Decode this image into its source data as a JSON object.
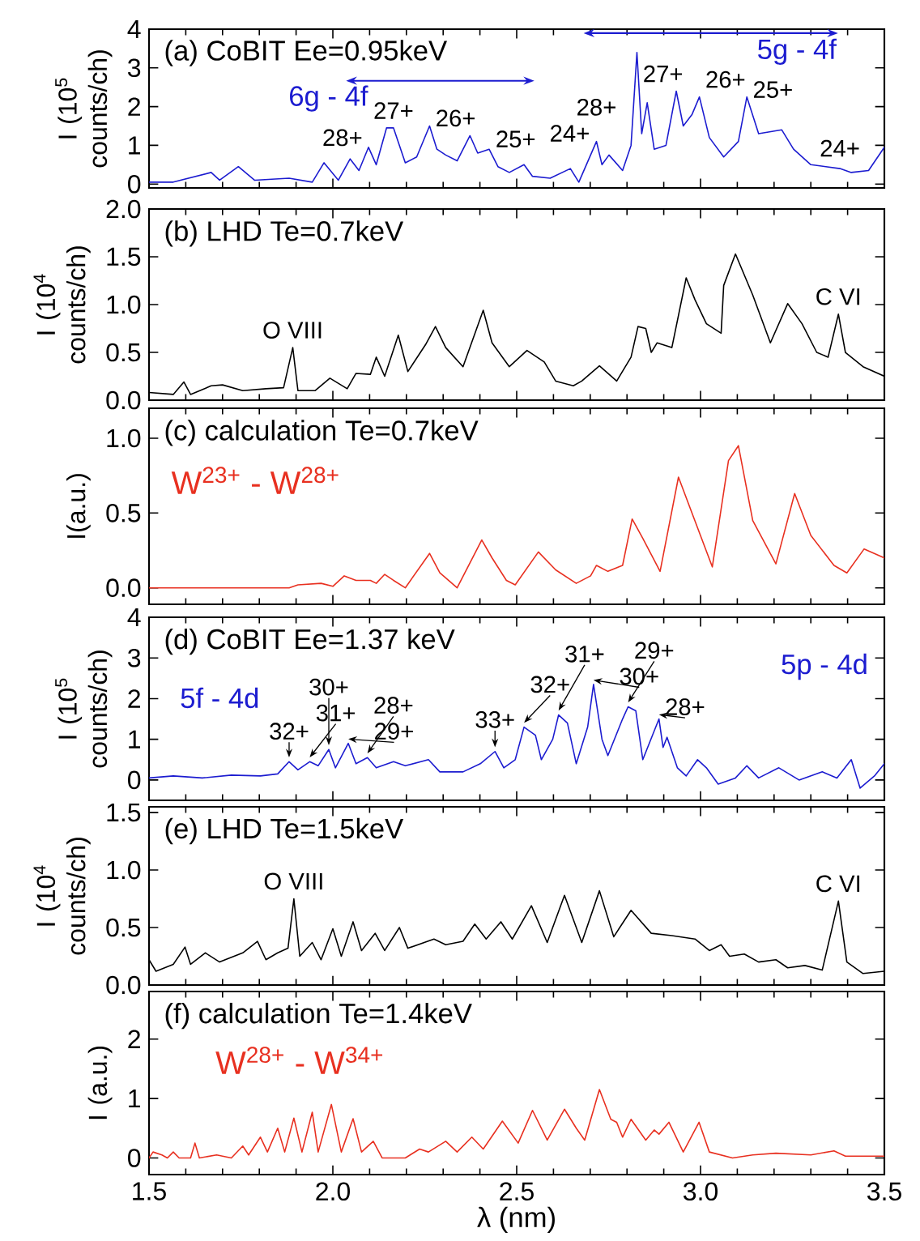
{
  "chart_data": [
    {
      "type": "line",
      "title": "(a) CoBIT Ee=0.95keV",
      "ylabel": "I (10$^{5}$ counts/ch)",
      "x": [
        1.5,
        1.566,
        1.669,
        1.692,
        1.743,
        1.787,
        1.881,
        1.944,
        1.976,
        2.015,
        2.047,
        2.071,
        2.097,
        2.118,
        2.146,
        2.165,
        2.197,
        2.228,
        2.263,
        2.283,
        2.307,
        2.338,
        2.373,
        2.394,
        2.425,
        2.449,
        2.48,
        2.52,
        2.543,
        2.591,
        2.646,
        2.669,
        2.717,
        2.732,
        2.751,
        2.788,
        2.811,
        2.827,
        2.84,
        2.855,
        2.874,
        2.906,
        2.934,
        2.953,
        2.977,
        2.997,
        3.024,
        3.063,
        3.103,
        3.126,
        3.158,
        3.221,
        3.253,
        3.3,
        3.379,
        3.41,
        3.457,
        3.5
      ],
      "series": [
        {
          "color": "#1c1cd0",
          "values": [
            0.05,
            0.05,
            0.3,
            0.1,
            0.45,
            0.1,
            0.15,
            0.05,
            0.55,
            0.1,
            0.65,
            0.35,
            0.95,
            0.5,
            1.45,
            1.45,
            0.55,
            0.7,
            1.5,
            0.9,
            0.75,
            0.6,
            1.25,
            0.8,
            0.9,
            0.45,
            0.3,
            0.5,
            0.2,
            0.15,
            0.4,
            0.05,
            1.1,
            0.5,
            0.75,
            0.35,
            1.0,
            3.4,
            1.3,
            2.1,
            0.9,
            1.0,
            2.4,
            1.5,
            1.8,
            2.25,
            1.2,
            0.7,
            1.1,
            2.25,
            1.3,
            1.4,
            0.9,
            0.5,
            0.4,
            0.3,
            0.35,
            0.95
          ]
        }
      ],
      "xlim": [
        1.5,
        3.5
      ],
      "ylim": [
        -0.1,
        4
      ],
      "xticks": [
        1.5,
        2,
        2.5,
        3,
        3.5
      ],
      "yticks": [
        0,
        1,
        2,
        3,
        4
      ],
      "tick_labels": "y",
      "annotations": [
        "6g - 4f",
        "5g - 4f",
        {
          "text": "28+",
          "x": 2.097,
          "y": 0.95
        },
        {
          "text": "27+",
          "x": 2.165,
          "y": 1.45
        },
        {
          "text": "26+",
          "x": 2.263,
          "y": 1.5
        },
        {
          "text": "25+",
          "x": 2.373,
          "y": 1.25
        },
        {
          "text": "24+",
          "x": 2.52,
          "y": 0.5
        },
        {
          "text": "28+",
          "x": 2.717,
          "y": 1.1
        },
        {
          "text": "27+",
          "x": 2.827,
          "y": 3.4
        },
        {
          "text": "26+",
          "x": 2.997,
          "y": 2.25
        },
        {
          "text": "25+",
          "x": 3.126,
          "y": 2.25
        },
        {
          "text": "24+",
          "x": 3.379,
          "y": 0.4
        }
      ]
    },
    {
      "type": "line",
      "title": "(b) LHD Te=0.7keV",
      "ylabel": "I (10$^{4}$ counts/ch)",
      "x": [
        1.5,
        1.566,
        1.595,
        1.613,
        1.669,
        1.7,
        1.755,
        1.818,
        1.866,
        1.891,
        1.905,
        1.952,
        1.992,
        2.039,
        2.063,
        2.102,
        2.118,
        2.141,
        2.178,
        2.204,
        2.252,
        2.279,
        2.307,
        2.354,
        2.409,
        2.433,
        2.48,
        2.528,
        2.575,
        2.606,
        2.654,
        2.677,
        2.725,
        2.772,
        2.811,
        2.83,
        2.851,
        2.866,
        2.882,
        2.922,
        2.961,
        2.985,
        3.016,
        3.056,
        3.063,
        3.095,
        3.142,
        3.19,
        3.237,
        3.276,
        3.316,
        3.347,
        3.375,
        3.394,
        3.442,
        3.5
      ],
      "series": [
        {
          "color": "#000000",
          "values": [
            0.08,
            0.06,
            0.19,
            0.06,
            0.15,
            0.16,
            0.1,
            0.12,
            0.13,
            0.55,
            0.1,
            0.1,
            0.23,
            0.12,
            0.28,
            0.27,
            0.45,
            0.25,
            0.68,
            0.3,
            0.58,
            0.77,
            0.55,
            0.35,
            0.94,
            0.6,
            0.35,
            0.52,
            0.4,
            0.2,
            0.15,
            0.2,
            0.36,
            0.2,
            0.45,
            0.77,
            0.75,
            0.5,
            0.6,
            0.55,
            1.28,
            1.05,
            0.8,
            0.7,
            1.2,
            1.53,
            1.1,
            0.6,
            1.01,
            0.8,
            0.5,
            0.45,
            0.9,
            0.5,
            0.35,
            0.25
          ]
        }
      ],
      "xlim": [
        1.5,
        3.5
      ],
      "ylim": [
        0,
        2
      ],
      "xticks": [
        1.5,
        2,
        2.5,
        3,
        3.5
      ],
      "yticks": [
        {
          "value": 0,
          "label": "0.0"
        },
        0.5,
        {
          "value": 1,
          "label": "1.0"
        },
        1.5,
        {
          "value": 2,
          "label": "2.0"
        }
      ],
      "tick_labels": "y",
      "annotations": [
        {
          "text": "O VIII",
          "x": 1.891,
          "y": 0.55
        },
        {
          "text": "C VI",
          "x": 3.375,
          "y": 0.9
        }
      ]
    },
    {
      "type": "line",
      "title": "(c) calculation Te=0.7keV",
      "ylabel": "I(a.u.)",
      "x": [
        1.5,
        1.881,
        1.905,
        1.968,
        2.0,
        2.031,
        2.063,
        2.102,
        2.118,
        2.141,
        2.165,
        2.197,
        2.263,
        2.291,
        2.338,
        2.405,
        2.433,
        2.472,
        2.496,
        2.559,
        2.606,
        2.662,
        2.701,
        2.717,
        2.748,
        2.788,
        2.814,
        2.843,
        2.89,
        2.94,
        2.969,
        3.032,
        3.076,
        3.103,
        3.142,
        3.205,
        3.256,
        3.3,
        3.363,
        3.398,
        3.445,
        3.5
      ],
      "series": [
        {
          "name": "W$^{23+}$ - W$^{28+}$",
          "color": "#e83020",
          "values": [
            0,
            0,
            0.02,
            0.03,
            0.01,
            0.08,
            0.05,
            0.05,
            0.03,
            0.09,
            0.05,
            0,
            0.23,
            0.1,
            0,
            0.32,
            0.2,
            0.05,
            0.02,
            0.24,
            0.12,
            0.03,
            0.08,
            0.15,
            0.11,
            0.15,
            0.46,
            0.33,
            0.11,
            0.74,
            0.55,
            0.14,
            0.85,
            0.95,
            0.45,
            0.16,
            0.63,
            0.35,
            0.15,
            0.1,
            0.26,
            0.2
          ]
        }
      ],
      "xlim": [
        1.5,
        3.5
      ],
      "ylim": [
        -0.11,
        1.2
      ],
      "xticks": [
        1.5,
        2,
        2.5,
        3,
        3.5
      ],
      "yticks": [
        {
          "value": 0,
          "label": "0.0"
        },
        0.5,
        {
          "value": 1,
          "label": "1.0"
        }
      ],
      "tick_labels": "y"
    },
    {
      "type": "line",
      "title": "(d) CoBIT Ee=1.37 keV",
      "ylabel": "I (10$^{5}$ counts/ch)",
      "x": [
        1.5,
        1.566,
        1.645,
        1.724,
        1.803,
        1.85,
        1.881,
        1.905,
        1.937,
        1.96,
        1.989,
        2.007,
        2.042,
        2.063,
        2.094,
        2.118,
        2.165,
        2.197,
        2.26,
        2.291,
        2.354,
        2.401,
        2.441,
        2.465,
        2.496,
        2.52,
        2.551,
        2.567,
        2.598,
        2.614,
        2.638,
        2.662,
        2.693,
        2.709,
        2.732,
        2.748,
        2.788,
        2.803,
        2.824,
        2.843,
        2.887,
        2.898,
        2.909,
        2.937,
        2.961,
        2.992,
        3.016,
        3.048,
        3.095,
        3.126,
        3.158,
        3.213,
        3.268,
        3.331,
        3.371,
        3.41,
        3.434,
        3.473,
        3.5
      ],
      "series": [
        {
          "color": "#1c1cd0",
          "values": [
            0.05,
            0.1,
            0.05,
            0.12,
            0.1,
            0.15,
            0.45,
            0.25,
            0.45,
            0.35,
            0.75,
            0.3,
            0.9,
            0.4,
            0.55,
            0.3,
            0.45,
            0.35,
            0.5,
            0.2,
            0.2,
            0.4,
            0.7,
            0.3,
            0.5,
            1.3,
            1.1,
            0.5,
            1.0,
            1.6,
            1.4,
            0.4,
            1.3,
            2.35,
            1.0,
            0.6,
            1.5,
            1.8,
            1.7,
            0.5,
            1.5,
            0.8,
            1.05,
            0.3,
            0.1,
            0.5,
            0.3,
            -0.1,
            0.05,
            0.35,
            0.05,
            0.3,
            0.0,
            0.2,
            0.05,
            0.5,
            -0.2,
            0.1,
            0.4
          ]
        }
      ],
      "xlim": [
        1.5,
        3.5
      ],
      "ylim": [
        -0.5,
        4
      ],
      "xticks": [
        1.5,
        2,
        2.5,
        3,
        3.5
      ],
      "yticks": [
        0,
        1,
        2,
        3,
        4
      ],
      "tick_labels": "y",
      "annotations": [
        "5f - 4d",
        "5p - 4d",
        {
          "text": "32+",
          "x": 1.881,
          "y": 0.45
        },
        {
          "text": "31+",
          "x": 1.937,
          "y": 0.45
        },
        {
          "text": "30+",
          "x": 1.989,
          "y": 0.75
        },
        {
          "text": "29+",
          "x": 2.042,
          "y": 0.9
        },
        {
          "text": "28+",
          "x": 2.094,
          "y": 0.55
        },
        {
          "text": "33+",
          "x": 2.441,
          "y": 0.7
        },
        {
          "text": "32+",
          "x": 2.52,
          "y": 1.3
        },
        {
          "text": "31+",
          "x": 2.614,
          "y": 1.6
        },
        {
          "text": "30+",
          "x": 2.709,
          "y": 2.35
        },
        {
          "text": "29+",
          "x": 2.803,
          "y": 1.8
        },
        {
          "text": "28+",
          "x": 2.887,
          "y": 1.5
        }
      ]
    },
    {
      "type": "line",
      "title": "(e) LHD Te=1.5keV",
      "ylabel": "I (10$^{4}$ counts/ch)",
      "x": [
        1.5,
        1.519,
        1.566,
        1.598,
        1.613,
        1.653,
        1.692,
        1.755,
        1.795,
        1.818,
        1.85,
        1.878,
        1.894,
        1.91,
        1.944,
        1.968,
        2.0,
        2.023,
        2.055,
        2.078,
        2.115,
        2.141,
        2.181,
        2.204,
        2.275,
        2.307,
        2.354,
        2.386,
        2.417,
        2.457,
        2.488,
        2.54,
        2.583,
        2.63,
        2.677,
        2.725,
        2.764,
        2.811,
        2.866,
        2.922,
        2.985,
        3.024,
        3.056,
        3.079,
        3.119,
        3.158,
        3.205,
        3.237,
        3.284,
        3.331,
        3.375,
        3.398,
        3.442,
        3.5
      ],
      "series": [
        {
          "color": "#000000",
          "values": [
            0.22,
            0.12,
            0.18,
            0.33,
            0.18,
            0.28,
            0.2,
            0.28,
            0.38,
            0.22,
            0.28,
            0.32,
            0.75,
            0.25,
            0.37,
            0.22,
            0.49,
            0.25,
            0.55,
            0.3,
            0.45,
            0.3,
            0.5,
            0.32,
            0.4,
            0.35,
            0.38,
            0.53,
            0.4,
            0.55,
            0.4,
            0.69,
            0.37,
            0.78,
            0.37,
            0.82,
            0.42,
            0.65,
            0.45,
            0.43,
            0.4,
            0.3,
            0.35,
            0.25,
            0.27,
            0.2,
            0.22,
            0.15,
            0.17,
            0.13,
            0.73,
            0.2,
            0.1,
            0.12
          ]
        }
      ],
      "xlim": [
        1.5,
        3.5
      ],
      "ylim": [
        0,
        1.55
      ],
      "xticks": [
        1.5,
        2,
        2.5,
        3,
        3.5
      ],
      "yticks": [
        {
          "value": 0,
          "label": "0.0"
        },
        0.5,
        {
          "value": 1,
          "label": "1.0"
        },
        1.5
      ],
      "tick_labels": "y",
      "annotations": [
        {
          "text": "O VIII",
          "x": 1.894,
          "y": 0.75
        },
        {
          "text": "C VI",
          "x": 3.375,
          "y": 0.73
        }
      ]
    },
    {
      "type": "line",
      "title": "(f) calculation Te=1.4keV",
      "ylabel": "I (a.u.)",
      "xlabel": "λ (nm)",
      "x": [
        1.5,
        1.511,
        1.535,
        1.55,
        1.566,
        1.582,
        1.613,
        1.625,
        1.637,
        1.684,
        1.724,
        1.755,
        1.771,
        1.803,
        1.822,
        1.85,
        1.869,
        1.894,
        1.916,
        1.944,
        1.96,
        1.996,
        2.023,
        2.055,
        2.078,
        2.11,
        2.134,
        2.197,
        2.236,
        2.26,
        2.307,
        2.338,
        2.378,
        2.409,
        2.461,
        2.504,
        2.543,
        2.583,
        2.63,
        2.662,
        2.685,
        2.725,
        2.756,
        2.772,
        2.788,
        2.811,
        2.851,
        2.874,
        2.887,
        2.914,
        2.953,
        2.996,
        3.024,
        3.087,
        3.142,
        3.205,
        3.3,
        3.363,
        3.394,
        3.5
      ],
      "series": [
        {
          "name": "W$^{28+}$ - W$^{34+}$",
          "color": "#e83020",
          "values": [
            0,
            0.1,
            0.05,
            0,
            0.1,
            0,
            0,
            0.25,
            0,
            0.05,
            0,
            0.2,
            0.05,
            0.35,
            0.1,
            0.5,
            0.1,
            0.67,
            0.1,
            0.77,
            0.1,
            0.9,
            0.1,
            0.66,
            0.1,
            0.28,
            0,
            0,
            0.15,
            0.1,
            0.28,
            0.1,
            0.35,
            0.15,
            0.62,
            0.25,
            0.8,
            0.3,
            0.82,
            0.5,
            0.3,
            1.15,
            0.65,
            0.6,
            0.35,
            0.65,
            0.3,
            0.47,
            0.4,
            0.6,
            0.1,
            0.6,
            0.1,
            0,
            0.05,
            0.08,
            0.05,
            0.12,
            0.03,
            0.03
          ]
        }
      ],
      "xlim": [
        1.5,
        3.5
      ],
      "ylim": [
        -0.28,
        2.8
      ],
      "xticks": [
        1.5,
        {
          "value": 2,
          "label": "2.0"
        },
        2.5,
        {
          "value": 3,
          "label": "3.0"
        },
        3.5
      ],
      "yticks": [
        0,
        1,
        2
      ]
    }
  ]
}
